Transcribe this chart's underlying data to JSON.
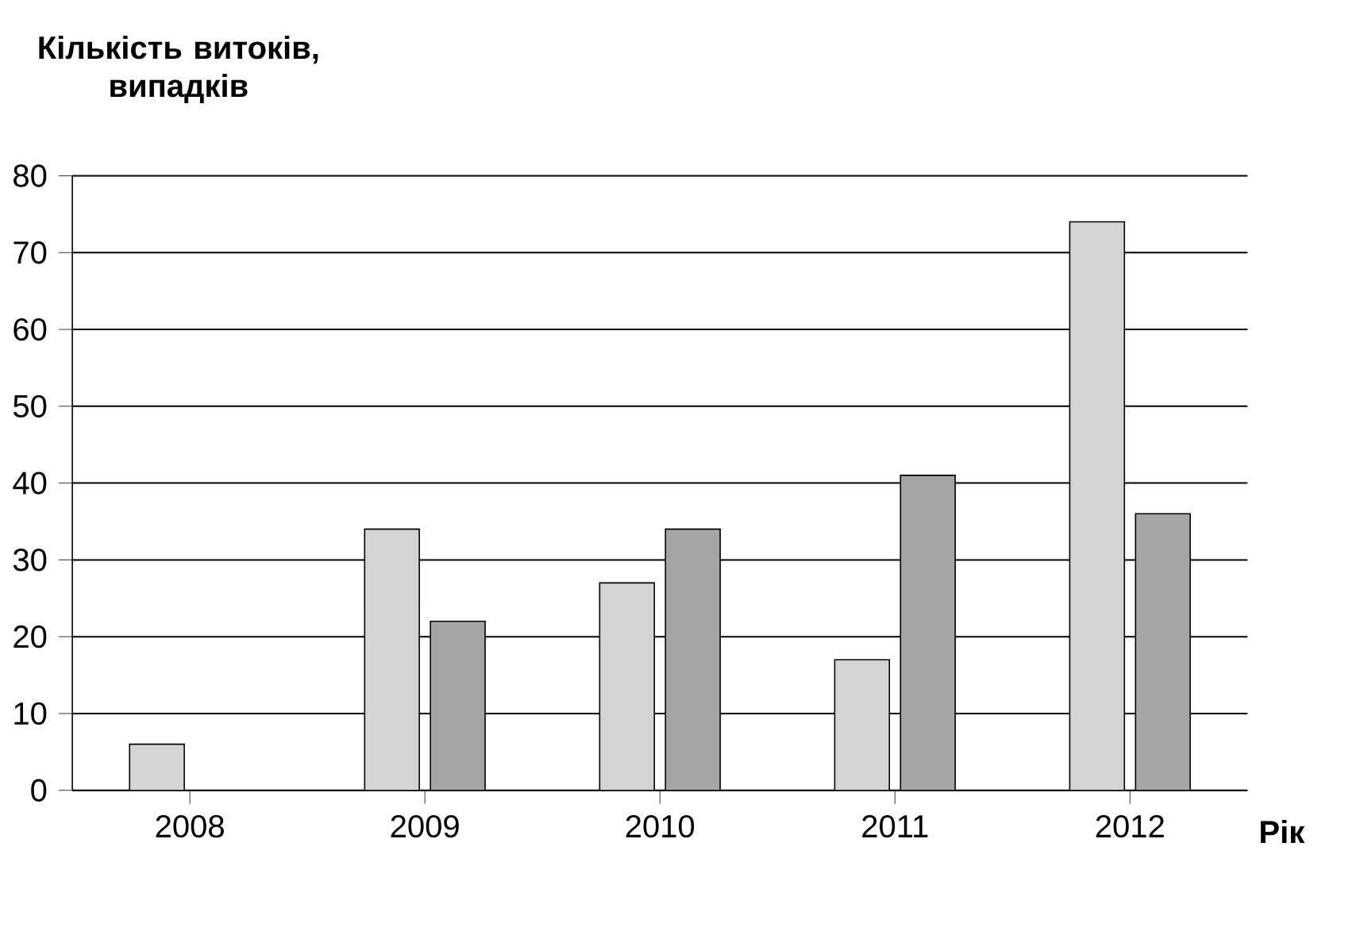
{
  "chart_data": {
    "type": "bar",
    "ylabel": "Кількість витоків, випадків",
    "xlabel": "Рік",
    "categories": [
      "2008",
      "2009",
      "2010",
      "2011",
      "2012"
    ],
    "series": [
      {
        "color": "#d4d4d4",
        "values": [
          6,
          34,
          27,
          17,
          74
        ]
      },
      {
        "color": "#a6a6a6",
        "values": [
          null,
          22,
          34,
          41,
          36
        ]
      }
    ],
    "ylim": [
      0,
      80
    ],
    "yticks": [
      0,
      10,
      20,
      30,
      40,
      50,
      60,
      70,
      80
    ],
    "grid": "y"
  }
}
